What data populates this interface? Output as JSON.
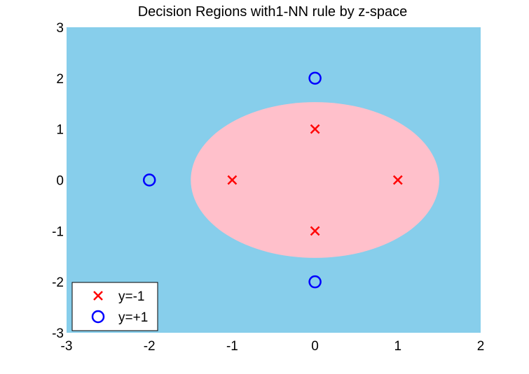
{
  "chart_data": {
    "type": "scatter",
    "title": "Decision Regions with1-NN rule by z-space",
    "xlabel": "",
    "ylabel": "",
    "xlim": [
      -3,
      2
    ],
    "ylim": [
      -3,
      3
    ],
    "x_ticks": [
      "-3",
      "-2",
      "-1",
      "0",
      "1",
      "2"
    ],
    "y_ticks": [
      "3",
      "2",
      "1",
      "0",
      "-1",
      "-2",
      "-3"
    ],
    "grid": false,
    "legend_position": "bottom-left",
    "background_region": {
      "label": "y=+1",
      "color": "#87CEEB"
    },
    "decision_region": {
      "label": "y=-1",
      "shape": "ellipse",
      "center": [
        0.0,
        0.0
      ],
      "semi_axis_x": 1.5,
      "semi_axis_y": 1.53,
      "color": "#FFC0CB"
    },
    "series": [
      {
        "name": "y=-1",
        "marker": "x",
        "color": "#FF0000",
        "points": [
          [
            0,
            1
          ],
          [
            -1,
            0
          ],
          [
            1,
            0
          ],
          [
            0,
            -1
          ]
        ]
      },
      {
        "name": "y=+1",
        "marker": "o",
        "color": "#0000FF",
        "points": [
          [
            0,
            2
          ],
          [
            -2,
            0
          ],
          [
            0,
            -2
          ]
        ]
      }
    ]
  }
}
